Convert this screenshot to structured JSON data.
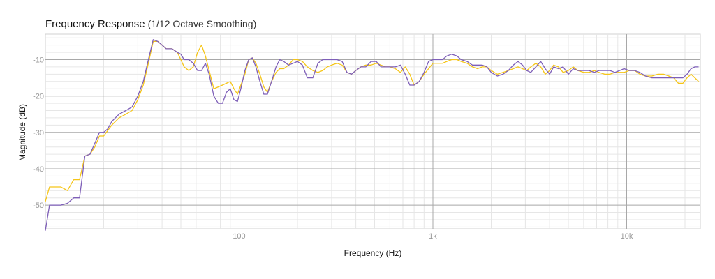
{
  "chart_data": {
    "type": "line",
    "title": "Frequency Response",
    "subtitle": "(1/12 Octave Smoothing)",
    "xlabel": "Frequency (Hz)",
    "ylabel": "Magnitude (dB)",
    "xscale": "log",
    "xlim": [
      10,
      24000
    ],
    "ylim": [
      -56.5,
      -3
    ],
    "x_ticks": [
      {
        "value": 100,
        "label": "100"
      },
      {
        "value": 1000,
        "label": "1k"
      },
      {
        "value": 10000,
        "label": "10k"
      }
    ],
    "y_ticks": [
      {
        "value": -10,
        "label": "-10"
      },
      {
        "value": -20,
        "label": "-20"
      },
      {
        "value": -30,
        "label": "-30"
      },
      {
        "value": -40,
        "label": "-40"
      },
      {
        "value": -50,
        "label": "-50"
      }
    ],
    "grid": true,
    "series": [
      {
        "color": "#f5c518",
        "points": [
          [
            10,
            -49
          ],
          [
            10.5,
            -45
          ],
          [
            12,
            -45
          ],
          [
            13,
            -46
          ],
          [
            14,
            -43
          ],
          [
            15,
            -43
          ],
          [
            16,
            -36.5
          ],
          [
            17,
            -36
          ],
          [
            18,
            -34
          ],
          [
            19,
            -31
          ],
          [
            20,
            -31
          ],
          [
            22,
            -28
          ],
          [
            24,
            -26
          ],
          [
            26,
            -25
          ],
          [
            28,
            -24
          ],
          [
            30,
            -21
          ],
          [
            32,
            -17
          ],
          [
            34,
            -11
          ],
          [
            36,
            -5
          ],
          [
            38,
            -5
          ],
          [
            40,
            -6
          ],
          [
            42,
            -7
          ],
          [
            45,
            -7
          ],
          [
            48,
            -8
          ],
          [
            50,
            -10
          ],
          [
            52,
            -12
          ],
          [
            55,
            -13
          ],
          [
            58,
            -12
          ],
          [
            61,
            -8
          ],
          [
            64,
            -6
          ],
          [
            67,
            -9
          ],
          [
            70,
            -13
          ],
          [
            74,
            -18
          ],
          [
            78,
            -17.5
          ],
          [
            82,
            -17
          ],
          [
            86,
            -16.5
          ],
          [
            90,
            -16
          ],
          [
            94,
            -18
          ],
          [
            98,
            -19.5
          ],
          [
            102,
            -17
          ],
          [
            107,
            -14
          ],
          [
            112,
            -10
          ],
          [
            117,
            -9.5
          ],
          [
            122,
            -11
          ],
          [
            128,
            -14
          ],
          [
            134,
            -17.5
          ],
          [
            140,
            -19
          ],
          [
            147,
            -16
          ],
          [
            155,
            -13.5
          ],
          [
            162,
            -12.5
          ],
          [
            170,
            -12.5
          ],
          [
            180,
            -11.5
          ],
          [
            190,
            -10
          ],
          [
            200,
            -10
          ],
          [
            212,
            -10.5
          ],
          [
            225,
            -12
          ],
          [
            240,
            -13
          ],
          [
            255,
            -13.5
          ],
          [
            270,
            -13
          ],
          [
            285,
            -12
          ],
          [
            300,
            -11.5
          ],
          [
            320,
            -11
          ],
          [
            340,
            -11.5
          ],
          [
            360,
            -13.5
          ],
          [
            380,
            -14
          ],
          [
            400,
            -13
          ],
          [
            425,
            -12
          ],
          [
            450,
            -11.5
          ],
          [
            480,
            -11.5
          ],
          [
            510,
            -11
          ],
          [
            540,
            -11.5
          ],
          [
            570,
            -12
          ],
          [
            600,
            -12
          ],
          [
            640,
            -12.5
          ],
          [
            680,
            -13.5
          ],
          [
            720,
            -12
          ],
          [
            760,
            -14
          ],
          [
            800,
            -17
          ],
          [
            850,
            -16
          ],
          [
            900,
            -14
          ],
          [
            950,
            -12.5
          ],
          [
            1000,
            -11
          ],
          [
            1060,
            -11
          ],
          [
            1120,
            -11
          ],
          [
            1180,
            -10.5
          ],
          [
            1250,
            -10
          ],
          [
            1330,
            -10
          ],
          [
            1400,
            -10.5
          ],
          [
            1500,
            -11
          ],
          [
            1600,
            -12
          ],
          [
            1700,
            -12.5
          ],
          [
            1800,
            -12
          ],
          [
            1900,
            -12
          ],
          [
            2000,
            -13
          ],
          [
            2150,
            -14
          ],
          [
            2300,
            -13.5
          ],
          [
            2450,
            -13
          ],
          [
            2600,
            -12.5
          ],
          [
            2750,
            -12
          ],
          [
            2900,
            -12.5
          ],
          [
            3050,
            -13
          ],
          [
            3200,
            -12
          ],
          [
            3400,
            -11
          ],
          [
            3600,
            -12
          ],
          [
            3800,
            -14
          ],
          [
            4000,
            -13
          ],
          [
            4200,
            -11.5
          ],
          [
            4450,
            -12
          ],
          [
            4700,
            -13.5
          ],
          [
            5000,
            -13
          ],
          [
            5300,
            -12
          ],
          [
            5600,
            -13
          ],
          [
            6000,
            -13.5
          ],
          [
            6400,
            -13.5
          ],
          [
            6800,
            -13
          ],
          [
            7200,
            -13.5
          ],
          [
            7700,
            -14
          ],
          [
            8200,
            -14
          ],
          [
            8700,
            -13.5
          ],
          [
            9200,
            -13.5
          ],
          [
            9700,
            -13.5
          ],
          [
            10300,
            -13
          ],
          [
            11000,
            -13
          ],
          [
            11700,
            -14
          ],
          [
            12500,
            -14.5
          ],
          [
            13500,
            -14.5
          ],
          [
            14500,
            -14
          ],
          [
            15500,
            -14
          ],
          [
            16500,
            -14.5
          ],
          [
            17500,
            -15
          ],
          [
            18500,
            -16.5
          ],
          [
            19500,
            -16.5
          ],
          [
            20500,
            -15
          ],
          [
            21500,
            -14
          ],
          [
            22500,
            -15
          ],
          [
            23500,
            -16
          ]
        ]
      },
      {
        "color": "#7e5fb8",
        "points": [
          [
            10,
            -57
          ],
          [
            10.5,
            -50
          ],
          [
            11,
            -50
          ],
          [
            12,
            -50
          ],
          [
            13,
            -49.5
          ],
          [
            14,
            -48
          ],
          [
            15,
            -48
          ],
          [
            16,
            -36.5
          ],
          [
            17,
            -36
          ],
          [
            18,
            -33
          ],
          [
            19,
            -30
          ],
          [
            20,
            -30
          ],
          [
            21,
            -29
          ],
          [
            22,
            -27
          ],
          [
            24,
            -25
          ],
          [
            26,
            -24
          ],
          [
            28,
            -23
          ],
          [
            30,
            -20
          ],
          [
            32,
            -16
          ],
          [
            34,
            -10
          ],
          [
            36,
            -4.5
          ],
          [
            38,
            -5
          ],
          [
            40,
            -6
          ],
          [
            42,
            -7
          ],
          [
            45,
            -7
          ],
          [
            48,
            -8
          ],
          [
            50,
            -8.5
          ],
          [
            52,
            -10
          ],
          [
            55,
            -10
          ],
          [
            58,
            -11
          ],
          [
            61,
            -13
          ],
          [
            64,
            -13
          ],
          [
            67,
            -11
          ],
          [
            70,
            -14
          ],
          [
            74,
            -20
          ],
          [
            78,
            -22
          ],
          [
            82,
            -22
          ],
          [
            86,
            -19
          ],
          [
            90,
            -18
          ],
          [
            94,
            -21
          ],
          [
            98,
            -21.5
          ],
          [
            102,
            -18
          ],
          [
            107,
            -13
          ],
          [
            112,
            -10
          ],
          [
            117,
            -9.5
          ],
          [
            122,
            -12
          ],
          [
            128,
            -16
          ],
          [
            134,
            -19.5
          ],
          [
            140,
            -19.5
          ],
          [
            147,
            -16
          ],
          [
            155,
            -12
          ],
          [
            162,
            -10
          ],
          [
            170,
            -10.5
          ],
          [
            180,
            -11.5
          ],
          [
            190,
            -11
          ],
          [
            200,
            -10.5
          ],
          [
            212,
            -11.5
          ],
          [
            225,
            -15
          ],
          [
            240,
            -15
          ],
          [
            255,
            -11
          ],
          [
            270,
            -10
          ],
          [
            285,
            -10
          ],
          [
            300,
            -10
          ],
          [
            320,
            -10
          ],
          [
            340,
            -10.5
          ],
          [
            360,
            -13.5
          ],
          [
            380,
            -14
          ],
          [
            400,
            -13
          ],
          [
            425,
            -12
          ],
          [
            450,
            -12
          ],
          [
            480,
            -10.5
          ],
          [
            510,
            -10.5
          ],
          [
            540,
            -12
          ],
          [
            570,
            -12
          ],
          [
            600,
            -12
          ],
          [
            640,
            -12
          ],
          [
            680,
            -11.5
          ],
          [
            720,
            -14
          ],
          [
            760,
            -17
          ],
          [
            800,
            -17
          ],
          [
            850,
            -16
          ],
          [
            900,
            -13.5
          ],
          [
            950,
            -10.5
          ],
          [
            1000,
            -10
          ],
          [
            1060,
            -10
          ],
          [
            1120,
            -10
          ],
          [
            1180,
            -9
          ],
          [
            1250,
            -8.5
          ],
          [
            1330,
            -9
          ],
          [
            1400,
            -10
          ],
          [
            1500,
            -10.5
          ],
          [
            1600,
            -11.5
          ],
          [
            1700,
            -11.5
          ],
          [
            1800,
            -11.5
          ],
          [
            1900,
            -12
          ],
          [
            2000,
            -13.5
          ],
          [
            2150,
            -14.5
          ],
          [
            2300,
            -14
          ],
          [
            2450,
            -13
          ],
          [
            2600,
            -11.5
          ],
          [
            2750,
            -10.5
          ],
          [
            2900,
            -11.5
          ],
          [
            3050,
            -13
          ],
          [
            3200,
            -13.5
          ],
          [
            3400,
            -12
          ],
          [
            3600,
            -10.5
          ],
          [
            3800,
            -12.5
          ],
          [
            4000,
            -14
          ],
          [
            4200,
            -12
          ],
          [
            4450,
            -12.5
          ],
          [
            4700,
            -12
          ],
          [
            5000,
            -14
          ],
          [
            5300,
            -12.5
          ],
          [
            5600,
            -13
          ],
          [
            6000,
            -13
          ],
          [
            6400,
            -13
          ],
          [
            6800,
            -13.5
          ],
          [
            7200,
            -13
          ],
          [
            7700,
            -13
          ],
          [
            8200,
            -13
          ],
          [
            8700,
            -13.5
          ],
          [
            9200,
            -13
          ],
          [
            9700,
            -12.5
          ],
          [
            10300,
            -13
          ],
          [
            11000,
            -13
          ],
          [
            11700,
            -13.5
          ],
          [
            12500,
            -14.5
          ],
          [
            13500,
            -15
          ],
          [
            14500,
            -15
          ],
          [
            15500,
            -15
          ],
          [
            16500,
            -15
          ],
          [
            17500,
            -15
          ],
          [
            18500,
            -15
          ],
          [
            19500,
            -15
          ],
          [
            20500,
            -14
          ],
          [
            21500,
            -12.5
          ],
          [
            22500,
            -12
          ],
          [
            23500,
            -12
          ]
        ]
      }
    ]
  }
}
